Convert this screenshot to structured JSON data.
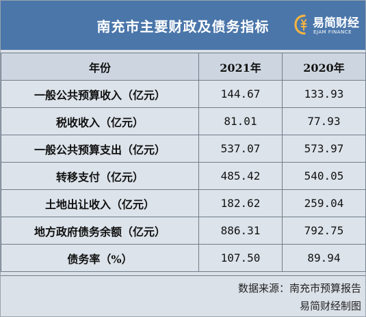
{
  "header": {
    "title": "南充市主要财政及债务指标",
    "logo_name": "易简财经",
    "logo_en": "EJAM FINANCE"
  },
  "table": {
    "columns": [
      "年份",
      "2021年",
      "2020年"
    ],
    "rows": [
      {
        "label": "一般公共预算收入（亿元）",
        "v2021": "144.67",
        "v2020": "133.93"
      },
      {
        "label": "税收收入（亿元）",
        "v2021": "81.01",
        "v2020": "77.93"
      },
      {
        "label": "一般公共预算支出（亿元）",
        "v2021": "537.07",
        "v2020": "573.97"
      },
      {
        "label": "转移支付（亿元）",
        "v2021": "485.42",
        "v2020": "540.05"
      },
      {
        "label": "土地出让收入（亿元）",
        "v2021": "182.62",
        "v2020": "259.04"
      },
      {
        "label": "地方政府债务余额（亿元）",
        "v2021": "886.31",
        "v2020": "792.75"
      },
      {
        "label": "债务率（%）",
        "v2021": "107.50",
        "v2020": "89.94"
      }
    ]
  },
  "footer": {
    "source": "数据来源：南充市预算报告",
    "credit": "易简财经制图"
  },
  "colors": {
    "header_bg": "#4a76aa",
    "table_bg": "#dce3ea",
    "border": "#6f7c8a"
  }
}
